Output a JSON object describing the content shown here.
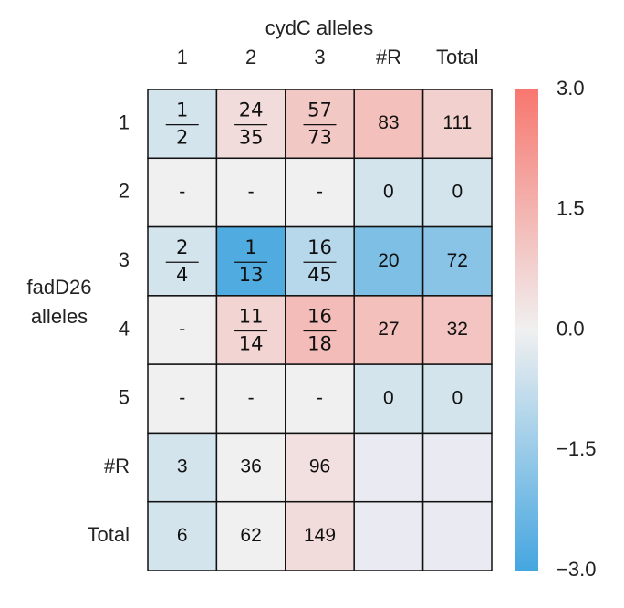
{
  "chart_data": {
    "type": "heatmap",
    "title": "cydC alleles",
    "ylabel": [
      "fadD26",
      "alleles"
    ],
    "columns": [
      "1",
      "2",
      "3",
      "#R",
      "Total"
    ],
    "rows": [
      "1",
      "2",
      "3",
      "4",
      "5",
      "#R",
      "Total"
    ],
    "values": [
      [
        -0.5,
        0.5,
        1.0,
        1.2,
        0.8
      ],
      [
        0,
        0,
        0,
        -0.5,
        -0.5
      ],
      [
        -0.5,
        -2.8,
        -1.0,
        -2.0,
        -1.8
      ],
      [
        0,
        0.7,
        1.3,
        1.2,
        1.1
      ],
      [
        0,
        0,
        0,
        -0.5,
        -0.5
      ],
      [
        -0.5,
        0,
        0.4,
        null,
        null
      ],
      [
        -0.5,
        0,
        0.5,
        null,
        null
      ]
    ],
    "annotations": [
      [
        {
          "num": 1,
          "den": 2
        },
        {
          "num": 24,
          "den": 35
        },
        {
          "num": 57,
          "den": 73
        },
        83,
        111
      ],
      [
        "-",
        "-",
        "-",
        0,
        0
      ],
      [
        {
          "num": 2,
          "den": 4
        },
        {
          "num": 1,
          "den": 13
        },
        {
          "num": 16,
          "den": 45
        },
        20,
        72
      ],
      [
        "-",
        {
          "num": 11,
          "den": 14
        },
        {
          "num": 16,
          "den": 18
        },
        27,
        32
      ],
      [
        "-",
        "-",
        "-",
        0,
        0
      ],
      [
        3,
        36,
        96,
        null,
        null
      ],
      [
        6,
        62,
        149,
        null,
        null
      ]
    ],
    "cmap": [
      "#45a6e0",
      "#f0f0f0",
      "#f7776f"
    ],
    "missing_color": "#eaeaf2",
    "clim": [
      -3,
      3
    ],
    "cticks": [
      {
        "value": 3,
        "label": "3.0"
      },
      {
        "value": 1.5,
        "label": "1.5"
      },
      {
        "value": 0,
        "label": "0.0"
      },
      {
        "value": -1.5,
        "label": "−1.5"
      },
      {
        "value": -3,
        "label": "−3.0"
      }
    ]
  }
}
